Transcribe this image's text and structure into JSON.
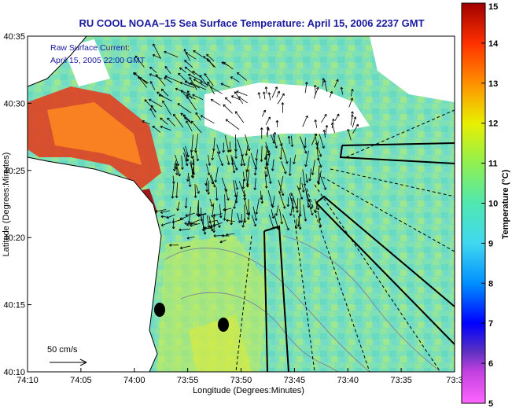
{
  "chart_data": {
    "type": "heatmap",
    "title": "RU COOL  NOAA–15  Sea Surface Temperature:  April 15, 2006 2237 GMT",
    "xlabel": "Longitude (Degrees:Minutes)",
    "ylabel": "Latitude (Degrees:Minutes)",
    "x_ticks": [
      "74:10",
      "74:05",
      "74:00",
      "73:55",
      "73:50",
      "73:45",
      "73:40",
      "73:35",
      "73:3"
    ],
    "y_ticks": [
      "40:35",
      "40:30",
      "40:25",
      "40:20",
      "40:15",
      "40:10"
    ],
    "xlim_minutes_west_of_73": [
      70,
      30
    ],
    "ylim_minutes_north_of_40": [
      10,
      35
    ],
    "colorbar": {
      "label": "Temperature (°C)",
      "ticks": [
        "15",
        "14",
        "13",
        "12",
        "11",
        "10",
        "9",
        "8",
        "7",
        "6",
        "5"
      ],
      "range": [
        5,
        15
      ]
    },
    "annotations": [
      "Raw Surface Current:",
      "April 15, 2005 22:00 GMT"
    ],
    "scale_arrow_label": "50 cm/s",
    "station_markers": [
      {
        "lon_min": 68.8,
        "lat_min": 14.0
      },
      {
        "lon_min": 62.0,
        "lat_min": 13.3
      }
    ],
    "colors": {
      "title": "#1a1aa0",
      "land": "#ffffff",
      "water_dominant": "#66e0b4",
      "warm_coast": "#cc2200"
    }
  }
}
